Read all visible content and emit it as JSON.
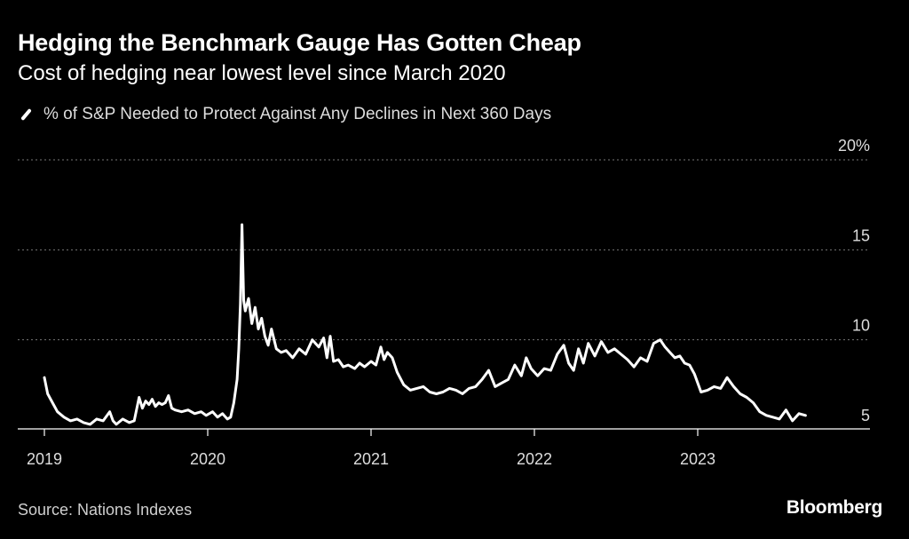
{
  "title": "Hedging the Benchmark Gauge Has Gotten Cheap",
  "subtitle": "Cost of hedging near lowest level since March 2020",
  "legend": "% of S&P Needed to Protect Against Any Declines in Next 360 Days",
  "source": "Source: Nations Indexes",
  "brand": "Bloomberg",
  "colors": {
    "background": "#000000",
    "line": "#ffffff",
    "grid": "#777777",
    "text": "#ffffff"
  },
  "chart_data": {
    "type": "line",
    "title": "Hedging the Benchmark Gauge Has Gotten Cheap",
    "subtitle": "Cost of hedging near lowest level since March 2020",
    "xlabel": "",
    "ylabel": "",
    "xlim": [
      2019.0,
      2023.95
    ],
    "ylim": [
      4.0,
      20.0
    ],
    "grid": "horizontal-dotted",
    "legend_position": "top-left",
    "x_ticks": [
      {
        "value": 2019,
        "label": "2019"
      },
      {
        "value": 2020,
        "label": "2020"
      },
      {
        "value": 2021,
        "label": "2021"
      },
      {
        "value": 2022,
        "label": "2022"
      },
      {
        "value": 2023,
        "label": "2023"
      }
    ],
    "y_ticks": [
      {
        "value": 5,
        "label": "5"
      },
      {
        "value": 10,
        "label": "10"
      },
      {
        "value": 15,
        "label": "15"
      },
      {
        "value": 20,
        "label": "20%"
      }
    ],
    "series": [
      {
        "name": "% of S&P Needed to Protect Against Any Declines in Next 360 Days",
        "x": [
          2019.0,
          2019.02,
          2019.05,
          2019.08,
          2019.12,
          2019.16,
          2019.2,
          2019.24,
          2019.28,
          2019.32,
          2019.36,
          2019.4,
          2019.42,
          2019.44,
          2019.48,
          2019.52,
          2019.55,
          2019.58,
          2019.6,
          2019.62,
          2019.64,
          2019.66,
          2019.68,
          2019.7,
          2019.72,
          2019.74,
          2019.76,
          2019.78,
          2019.8,
          2019.84,
          2019.88,
          2019.92,
          2019.96,
          2019.99,
          2020.03,
          2020.06,
          2020.09,
          2020.12,
          2020.14,
          2020.16,
          2020.18,
          2020.19,
          2020.2,
          2020.21,
          2020.22,
          2020.23,
          2020.25,
          2020.27,
          2020.29,
          2020.31,
          2020.33,
          2020.35,
          2020.37,
          2020.39,
          2020.42,
          2020.45,
          2020.48,
          2020.52,
          2020.56,
          2020.6,
          2020.64,
          2020.68,
          2020.71,
          2020.73,
          2020.75,
          2020.77,
          2020.8,
          2020.83,
          2020.86,
          2020.9,
          2020.93,
          2020.96,
          2021.0,
          2021.03,
          2021.06,
          2021.08,
          2021.1,
          2021.13,
          2021.16,
          2021.2,
          2021.24,
          2021.28,
          2021.32,
          2021.36,
          2021.4,
          2021.44,
          2021.48,
          2021.52,
          2021.56,
          2021.6,
          2021.64,
          2021.68,
          2021.72,
          2021.76,
          2021.8,
          2021.84,
          2021.88,
          2021.92,
          2021.95,
          2021.98,
          2022.02,
          2022.06,
          2022.1,
          2022.14,
          2022.18,
          2022.21,
          2022.24,
          2022.27,
          2022.3,
          2022.33,
          2022.37,
          2022.41,
          2022.45,
          2022.49,
          2022.53,
          2022.57,
          2022.61,
          2022.65,
          2022.69,
          2022.73,
          2022.77,
          2022.8,
          2022.83,
          2022.86,
          2022.89,
          2022.92,
          2022.95,
          2022.98,
          2023.02,
          2023.06,
          2023.1,
          2023.14,
          2023.18,
          2023.22,
          2023.26,
          2023.3,
          2023.34,
          2023.38,
          2023.42,
          2023.46,
          2023.5,
          2023.54,
          2023.58,
          2023.62,
          2023.66
        ],
        "y": [
          7.9,
          7.0,
          6.5,
          6.0,
          5.7,
          5.5,
          5.6,
          5.4,
          5.3,
          5.6,
          5.5,
          6.0,
          5.5,
          5.3,
          5.6,
          5.4,
          5.5,
          6.8,
          6.2,
          6.6,
          6.4,
          6.7,
          6.3,
          6.5,
          6.4,
          6.5,
          6.9,
          6.2,
          6.1,
          6.0,
          6.1,
          5.9,
          6.0,
          5.8,
          6.0,
          5.7,
          5.9,
          5.6,
          5.7,
          6.5,
          7.8,
          9.5,
          12.0,
          16.4,
          12.2,
          11.6,
          12.3,
          10.9,
          11.8,
          10.6,
          11.2,
          10.2,
          9.7,
          10.6,
          9.5,
          9.3,
          9.4,
          9.0,
          9.5,
          9.2,
          10.0,
          9.6,
          10.1,
          9.0,
          10.2,
          8.8,
          8.9,
          8.5,
          8.6,
          8.4,
          8.7,
          8.5,
          8.8,
          8.6,
          9.6,
          8.9,
          9.3,
          9.0,
          8.2,
          7.5,
          7.2,
          7.3,
          7.4,
          7.1,
          7.0,
          7.1,
          7.3,
          7.2,
          7.0,
          7.3,
          7.4,
          7.8,
          8.3,
          7.4,
          7.6,
          7.8,
          8.6,
          8.0,
          9.0,
          8.4,
          8.0,
          8.4,
          8.3,
          9.2,
          9.7,
          8.7,
          8.3,
          9.5,
          8.7,
          9.8,
          9.1,
          9.9,
          9.3,
          9.5,
          9.2,
          8.9,
          8.5,
          9.0,
          8.8,
          9.8,
          10.0,
          9.6,
          9.3,
          9.0,
          9.1,
          8.7,
          8.6,
          8.1,
          7.1,
          7.2,
          7.4,
          7.3,
          7.9,
          7.4,
          7.0,
          6.8,
          6.5,
          6.0,
          5.8,
          5.7,
          5.6,
          6.1,
          5.5,
          5.9,
          5.8
        ]
      }
    ]
  }
}
